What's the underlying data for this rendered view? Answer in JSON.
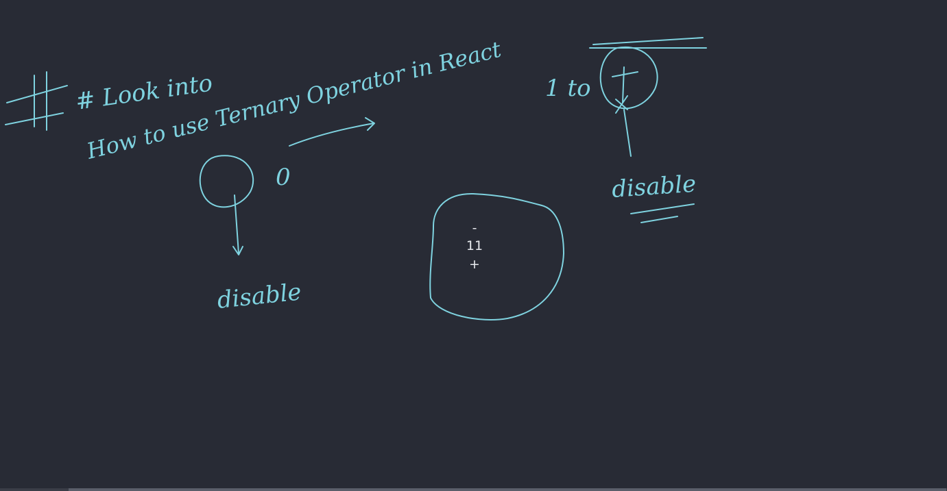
{
  "whiteboard": {
    "heading": "# Look into",
    "line1": "How to use Ternary Operator in React",
    "note_left": "disable",
    "note_right": "disable",
    "note_mid_left": "0",
    "note_top_right": "1 to"
  },
  "counter": {
    "decrement_label": "-",
    "value": "11",
    "increment_label": "+"
  },
  "colors": {
    "background": "#282b35",
    "ink": "#7fd3e0",
    "text": "#e8eaee"
  }
}
